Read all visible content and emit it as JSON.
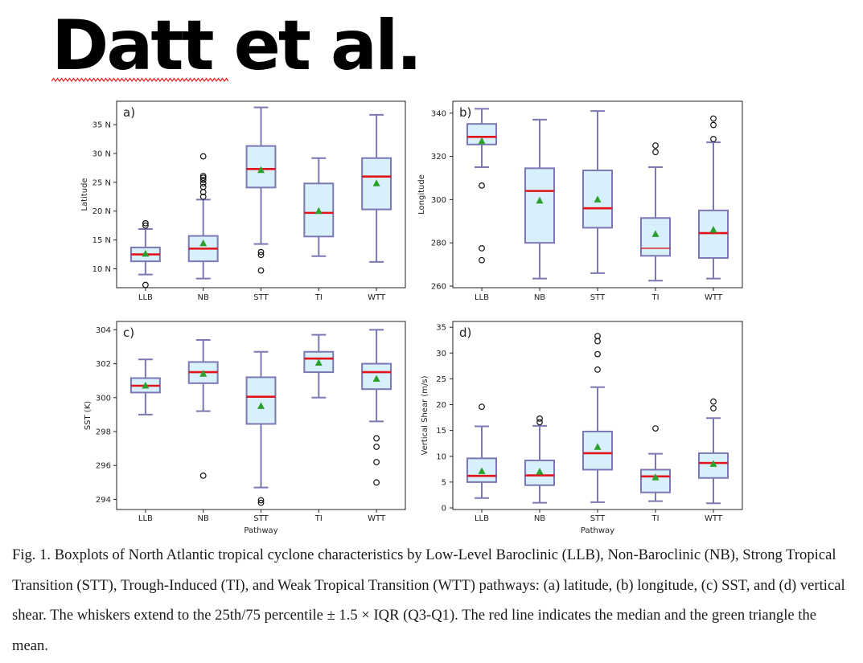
{
  "headline": "Datt et al.",
  "caption": "Fig. 1. Boxplots of North Atlantic tropical cyclone characteristics by Low-Level Baroclinic (LLB), Non-Baroclinic (NB), Strong Tropical Transition (STT), Trough-Induced (TI), and Weak Tropical Transition (WTT) pathways: (a) latitude, (b) longitude, (c) SST, and (d) vertical shear. The whiskers extend to the 25th/75 percentile ± 1.5 × IQR (Q3-Q1). The red line indicates the median and the green triangle the mean.",
  "colors": {
    "box_fill": "#d7f0fb",
    "box_edge": "#7b78b5",
    "median": "#e0141a",
    "mean": "#2ca02c",
    "spellcheck_underline": "#e02020"
  },
  "chart_data": [
    {
      "type": "box",
      "panel_label": "a)",
      "categories": [
        "LLB",
        "NB",
        "STT",
        "TI",
        "WTT"
      ],
      "xlabel": "",
      "ylabel": "Latitude",
      "ylim": [
        7,
        38.5
      ],
      "yticks": [
        10,
        15,
        20,
        25,
        30,
        35
      ],
      "yticklabels": [
        "10 N",
        "15 N",
        "20 N",
        "25 N",
        "30 N",
        "35 N"
      ],
      "grid": false,
      "boxes": [
        {
          "whislo": 9,
          "q1": 11.3,
          "med": 12.5,
          "q3": 13.7,
          "whishi": 16.9,
          "mean": 12.6,
          "fliers": [
            7.2,
            17.5,
            17.9
          ]
        },
        {
          "whislo": 8.3,
          "q1": 11.3,
          "med": 13.5,
          "q3": 15.7,
          "whishi": 22.0,
          "mean": 14.4,
          "fliers": [
            22.5,
            23.3,
            24.2,
            24.8,
            25.4,
            25.8,
            26.1,
            29.5
          ]
        },
        {
          "whislo": 14.3,
          "q1": 24.1,
          "med": 27.3,
          "q3": 31.3,
          "whishi": 38.0,
          "mean": 27.1,
          "fliers": [
            9.7,
            12.4,
            12.9
          ]
        },
        {
          "whislo": 12.2,
          "q1": 15.6,
          "med": 19.7,
          "q3": 24.8,
          "whishi": 29.2,
          "mean": 20.0,
          "fliers": []
        },
        {
          "whislo": 11.2,
          "q1": 20.3,
          "med": 26.0,
          "q3": 29.2,
          "whishi": 36.7,
          "mean": 24.8,
          "fliers": []
        }
      ]
    },
    {
      "type": "box",
      "panel_label": "b)",
      "categories": [
        "LLB",
        "NB",
        "STT",
        "TI",
        "WTT"
      ],
      "xlabel": "",
      "ylabel": "Longitude",
      "ylim": [
        260,
        344
      ],
      "yticks": [
        260,
        280,
        300,
        320,
        340
      ],
      "yticklabels": [
        "260",
        "280",
        "300",
        "320",
        "340"
      ],
      "grid": false,
      "boxes": [
        {
          "whislo": 315,
          "q1": 325.5,
          "med": 329,
          "q3": 335,
          "whishi": 342,
          "mean": 327,
          "fliers": [
            272,
            277.5,
            306.5
          ]
        },
        {
          "whislo": 263.5,
          "q1": 280,
          "med": 304,
          "q3": 314.5,
          "whishi": 337,
          "mean": 299.5,
          "fliers": []
        },
        {
          "whislo": 266,
          "q1": 287,
          "med": 296,
          "q3": 313.5,
          "whishi": 341,
          "mean": 300,
          "fliers": []
        },
        {
          "whislo": 262.5,
          "q1": 274,
          "med": 277.5,
          "q3": 291.5,
          "whishi": 315,
          "mean": 284,
          "fliers": [
            322,
            325
          ]
        },
        {
          "whislo": 263.5,
          "q1": 273,
          "med": 284.5,
          "q3": 295,
          "whishi": 326.5,
          "mean": 286,
          "fliers": [
            328,
            334.5,
            337.5
          ]
        }
      ]
    },
    {
      "type": "box",
      "panel_label": "c)",
      "categories": [
        "LLB",
        "NB",
        "STT",
        "TI",
        "WTT"
      ],
      "xlabel": "Pathway",
      "ylabel": "SST (K)",
      "ylim": [
        293.5,
        304.3
      ],
      "yticks": [
        294,
        296,
        298,
        300,
        302,
        304
      ],
      "yticklabels": [
        "294",
        "296",
        "298",
        "300",
        "302",
        "304"
      ],
      "grid": false,
      "boxes": [
        {
          "whislo": 299.0,
          "q1": 300.3,
          "med": 300.7,
          "q3": 301.15,
          "whishi": 302.25,
          "mean": 300.7,
          "fliers": []
        },
        {
          "whislo": 299.2,
          "q1": 300.85,
          "med": 301.5,
          "q3": 302.1,
          "whishi": 303.4,
          "mean": 301.4,
          "fliers": [
            295.4
          ]
        },
        {
          "whislo": 294.7,
          "q1": 298.45,
          "med": 300.05,
          "q3": 301.2,
          "whishi": 302.7,
          "mean": 299.5,
          "fliers": [
            293.8,
            293.95
          ]
        },
        {
          "whislo": 300.0,
          "q1": 301.5,
          "med": 302.3,
          "q3": 302.7,
          "whishi": 303.7,
          "mean": 302.05,
          "fliers": []
        },
        {
          "whislo": 298.6,
          "q1": 300.5,
          "med": 301.5,
          "q3": 302.0,
          "whishi": 304.0,
          "mean": 301.1,
          "fliers": [
            295.0,
            296.2,
            297.1,
            297.6
          ]
        }
      ]
    },
    {
      "type": "box",
      "panel_label": "d)",
      "categories": [
        "LLB",
        "NB",
        "STT",
        "TI",
        "WTT"
      ],
      "xlabel": "Pathway",
      "ylabel": "Vertical Shear (m/s)",
      "ylim": [
        0,
        35.5
      ],
      "yticks": [
        0,
        5,
        10,
        15,
        20,
        25,
        30,
        35
      ],
      "yticklabels": [
        "0",
        "5",
        "10",
        "15",
        "20",
        "25",
        "30",
        "35"
      ],
      "grid": false,
      "boxes": [
        {
          "whislo": 1.9,
          "q1": 5.0,
          "med": 6.2,
          "q3": 9.6,
          "whishi": 15.8,
          "mean": 7.1,
          "fliers": [
            19.6
          ]
        },
        {
          "whislo": 1.0,
          "q1": 4.4,
          "med": 6.3,
          "q3": 9.2,
          "whishi": 15.9,
          "mean": 7.0,
          "fliers": [
            16.6,
            17.3
          ]
        },
        {
          "whislo": 1.1,
          "q1": 7.4,
          "med": 10.6,
          "q3": 14.8,
          "whishi": 23.4,
          "mean": 11.8,
          "fliers": [
            26.8,
            29.8,
            32.3,
            33.3
          ]
        },
        {
          "whislo": 1.3,
          "q1": 3.0,
          "med": 6.1,
          "q3": 7.4,
          "whishi": 10.5,
          "mean": 5.9,
          "fliers": [
            15.4
          ]
        },
        {
          "whislo": 0.9,
          "q1": 5.8,
          "med": 8.7,
          "q3": 10.6,
          "whishi": 17.4,
          "mean": 8.5,
          "fliers": [
            19.3,
            20.6
          ]
        }
      ]
    }
  ]
}
